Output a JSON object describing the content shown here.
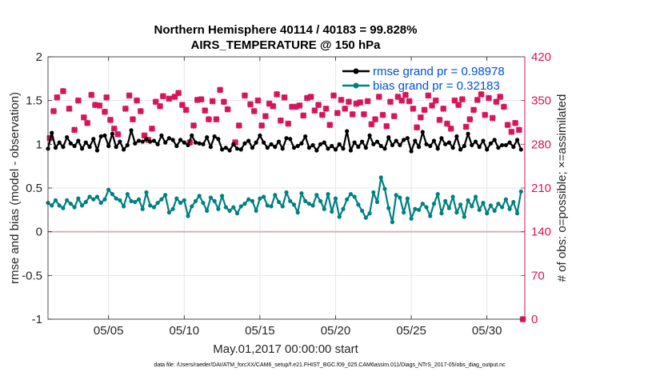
{
  "chart_data": {
    "type": "line",
    "title": "Northern Hemisphere 40114 / 40183 = 99.828%",
    "subtitle": "AIRS_TEMPERATURE @ 150 hPa",
    "xlabel": "May.01,2017 00:00:00 start",
    "ylabel": "rmse and bias (model - observation)",
    "y2label": "# of obs: o=possible; ×=assimilated",
    "footnote": "data file: /Users/raeder/DAI/ATM_forcXX/CAM6_setup/f.e21.FHIST_BGC.f09_025.CAM6assim.011/Diags_NTrS_2017-05/obs_diag_output.nc",
    "xlim": [
      1,
      32.5
    ],
    "ylim": [
      -1,
      2
    ],
    "y2lim": [
      0,
      420
    ],
    "xticks": [
      5,
      10,
      15,
      20,
      25,
      30
    ],
    "xtick_labels": [
      "05/05",
      "05/10",
      "05/15",
      "05/20",
      "05/25",
      "05/30"
    ],
    "yticks": [
      -1,
      -0.5,
      0,
      0.5,
      1,
      1.5,
      2
    ],
    "ytick_labels": [
      "-1",
      "-0.5",
      "0",
      "0.5",
      "1",
      "1.5",
      "2"
    ],
    "y2ticks": [
      0,
      70,
      140,
      210,
      280,
      350,
      420
    ],
    "y2tick_labels": [
      "0",
      "70",
      "140",
      "210",
      "280",
      "350",
      "420"
    ],
    "grid": true,
    "legend_position": "top-right",
    "colors": {
      "rmse": "#000000",
      "bias": "#008080",
      "obs": "#d6145a",
      "zero_line": "#d8b0b8",
      "legend_text": "#0051d8",
      "right_axis": "#d6145a"
    },
    "series": [
      {
        "name": "rmse grand pr = 0.98978",
        "axis": "left",
        "x_start": 1.0,
        "x_step": 0.25,
        "values": [
          0.95,
          1.13,
          0.96,
          1.02,
          0.97,
          1.08,
          1.01,
          0.98,
          1.04,
          0.95,
          1.02,
          0.97,
          1.06,
          0.93,
          1.09,
          1.1,
          0.98,
          1.12,
          0.97,
          1.03,
          0.94,
          0.99,
          1.16,
          1.01,
          1.04,
          1.03,
          1.06,
          1.03,
          1.04,
          1.0,
          1.1,
          1.02,
          1.07,
          1.05,
          0.98,
          1.05,
          1.02,
          0.99,
          1.1,
          1.02,
          1.01,
          1.0,
          1.08,
          0.97,
          1.09,
          1.06,
          0.94,
          0.96,
          0.93,
          1.0,
          0.95,
          0.94,
          1.01,
          1.04,
          0.96,
          1.02,
          1.1,
          1.02,
          0.96,
          1.0,
          0.97,
          1.03,
          0.95,
          1.07,
          1.06,
          0.96,
          0.98,
          1.01,
          1.09,
          0.96,
          0.99,
          0.93,
          1.0,
          1.02,
          0.95,
          0.98,
          0.94,
          1.0,
          0.95,
          1.15,
          0.93,
          1.02,
          0.97,
          1.03,
          0.96,
          1.1,
          1.0,
          1.03,
          0.98,
          0.95,
          1.08,
          0.99,
          1.04,
          0.99,
          1.05,
          1.07,
          0.92,
          1.04,
          0.97,
          1.14,
          1.0,
          0.98,
          1.04,
          0.95,
          1.07,
          1.0,
          1.02,
          0.96,
          1.09,
          0.94,
          0.98,
          1.12,
          0.99,
          1.03,
          0.97,
          1.04,
          0.94,
          1.01,
          1.05,
          0.96,
          0.99,
          0.99,
          1.02,
          0.97,
          1.05,
          0.94
        ]
      },
      {
        "name": "bias grand pr = 0.32183",
        "axis": "left",
        "x_start": 1.0,
        "x_step": 0.25,
        "values": [
          0.33,
          0.3,
          0.36,
          0.3,
          0.27,
          0.36,
          0.32,
          0.28,
          0.38,
          0.3,
          0.34,
          0.4,
          0.37,
          0.4,
          0.33,
          0.37,
          0.48,
          0.43,
          0.38,
          0.36,
          0.29,
          0.43,
          0.35,
          0.34,
          0.37,
          0.26,
          0.45,
          0.3,
          0.28,
          0.33,
          0.37,
          0.42,
          0.22,
          0.26,
          0.38,
          0.33,
          0.36,
          0.18,
          0.29,
          0.35,
          0.41,
          0.33,
          0.24,
          0.39,
          0.35,
          0.26,
          0.41,
          0.28,
          0.24,
          0.28,
          0.21,
          0.29,
          0.32,
          0.37,
          0.35,
          0.24,
          0.38,
          0.4,
          0.3,
          0.29,
          0.42,
          0.34,
          0.29,
          0.45,
          0.35,
          0.31,
          0.22,
          0.44,
          0.35,
          0.32,
          0.3,
          0.42,
          0.35,
          0.26,
          0.43,
          0.23,
          0.38,
          0.17,
          0.26,
          0.37,
          0.43,
          0.4,
          0.31,
          0.24,
          0.16,
          0.21,
          0.45,
          0.34,
          0.62,
          0.49,
          0.27,
          0.11,
          0.42,
          0.39,
          0.22,
          0.38,
          0.15,
          0.26,
          0.25,
          0.32,
          0.28,
          0.18,
          0.32,
          0.43,
          0.21,
          0.35,
          0.27,
          0.4,
          0.22,
          0.31,
          0.17,
          0.36,
          0.29,
          0.4,
          0.25,
          0.33,
          0.21,
          0.3,
          0.24,
          0.32,
          0.28,
          0.37,
          0.26,
          0.34,
          0.21,
          0.46
        ]
      },
      {
        "name": "obs assimilated",
        "axis": "right",
        "marker": "x",
        "points": [
          [
            1.12,
            290
          ],
          [
            1.37,
            333
          ],
          [
            1.6,
            355
          ],
          [
            2.0,
            365
          ],
          [
            2.4,
            337
          ],
          [
            2.75,
            303
          ],
          [
            3.0,
            350
          ],
          [
            3.37,
            323
          ],
          [
            3.6,
            314
          ],
          [
            3.87,
            359
          ],
          [
            4.12,
            343
          ],
          [
            4.4,
            342
          ],
          [
            4.75,
            332
          ],
          [
            4.87,
            355
          ],
          [
            5.12,
            319
          ],
          [
            5.37,
            305
          ],
          [
            5.62,
            296
          ],
          [
            6.12,
            337
          ],
          [
            6.37,
            358
          ],
          [
            6.6,
            320
          ],
          [
            6.87,
            350
          ],
          [
            7.12,
            333
          ],
          [
            7.37,
            294
          ],
          [
            7.62,
            287
          ],
          [
            7.87,
            305
          ],
          [
            8.12,
            348
          ],
          [
            8.4,
            341
          ],
          [
            8.6,
            357
          ],
          [
            9.0,
            353
          ],
          [
            9.37,
            356
          ],
          [
            9.62,
            362
          ],
          [
            9.87,
            343
          ],
          [
            10.12,
            335
          ],
          [
            10.37,
            283
          ],
          [
            10.62,
            310
          ],
          [
            10.87,
            351
          ],
          [
            11.12,
            352
          ],
          [
            11.37,
            334
          ],
          [
            11.62,
            320
          ],
          [
            11.87,
            349
          ],
          [
            12.12,
            320
          ],
          [
            12.37,
            367
          ],
          [
            12.62,
            348
          ],
          [
            12.87,
            336
          ],
          [
            13.37,
            283
          ],
          [
            13.62,
            310
          ],
          [
            14.0,
            358
          ],
          [
            14.37,
            344
          ],
          [
            14.62,
            333
          ],
          [
            14.87,
            350
          ],
          [
            15.12,
            310
          ],
          [
            15.37,
            325
          ],
          [
            15.62,
            345
          ],
          [
            15.87,
            341
          ],
          [
            16.12,
            360
          ],
          [
            16.37,
            318
          ],
          [
            16.62,
            355
          ],
          [
            16.87,
            313
          ],
          [
            17.12,
            340
          ],
          [
            17.37,
            340
          ],
          [
            17.62,
            342
          ],
          [
            17.87,
            326
          ],
          [
            18.12,
            354
          ],
          [
            18.37,
            356
          ],
          [
            18.62,
            334
          ],
          [
            18.87,
            343
          ],
          [
            19.12,
            327
          ],
          [
            19.37,
            337
          ],
          [
            19.62,
            311
          ],
          [
            19.87,
            358
          ],
          [
            20.12,
            330
          ],
          [
            20.37,
            351
          ],
          [
            20.62,
            337
          ],
          [
            20.87,
            348
          ],
          [
            21.12,
            328
          ],
          [
            21.37,
            345
          ],
          [
            21.62,
            347
          ],
          [
            21.87,
            328
          ],
          [
            22.12,
            349
          ],
          [
            22.37,
            312
          ],
          [
            22.62,
            320
          ],
          [
            22.87,
            356
          ],
          [
            23.12,
            327
          ],
          [
            23.37,
            309
          ],
          [
            23.62,
            348
          ],
          [
            23.87,
            325
          ],
          [
            24.12,
            356
          ],
          [
            24.37,
            350
          ],
          [
            24.62,
            359
          ],
          [
            24.87,
            349
          ],
          [
            25.12,
            337
          ],
          [
            25.37,
            307
          ],
          [
            25.62,
            323
          ],
          [
            25.87,
            335
          ],
          [
            26.12,
            358
          ],
          [
            26.37,
            342
          ],
          [
            26.62,
            350
          ],
          [
            26.87,
            319
          ],
          [
            27.12,
            337
          ],
          [
            27.37,
            313
          ],
          [
            27.62,
            305
          ],
          [
            27.87,
            350
          ],
          [
            28.12,
            343
          ],
          [
            28.37,
            352
          ],
          [
            28.62,
            308
          ],
          [
            28.87,
            320
          ],
          [
            29.12,
            335
          ],
          [
            29.37,
            351
          ],
          [
            29.62,
            360
          ],
          [
            29.87,
            327
          ],
          [
            30.12,
            354
          ],
          [
            30.37,
            322
          ],
          [
            30.62,
            348
          ],
          [
            30.87,
            356
          ],
          [
            31.12,
            340
          ],
          [
            31.37,
            311
          ],
          [
            31.62,
            300
          ],
          [
            31.87,
            314
          ],
          [
            32.12,
            303
          ],
          [
            32.37,
            0
          ]
        ]
      }
    ]
  }
}
